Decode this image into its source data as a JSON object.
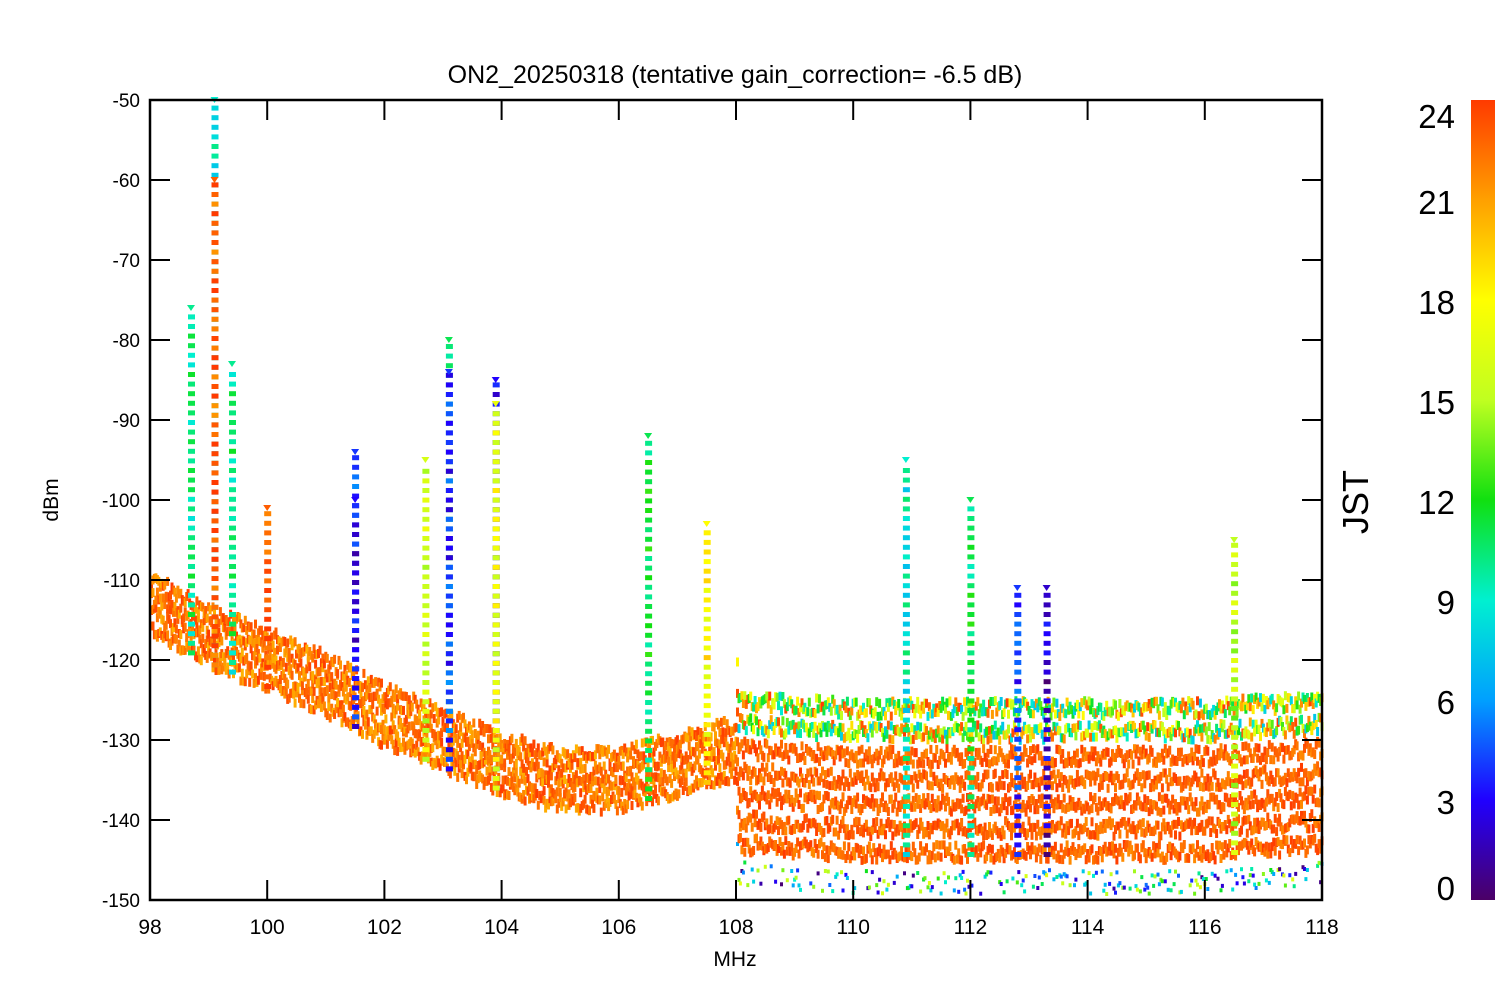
{
  "chart_data": {
    "type": "scatter",
    "title": "ON2_20250318 (tentative gain_correction= -6.5 dB)",
    "xlabel": "MHz",
    "ylabel": "dBm",
    "xlim": [
      98,
      118
    ],
    "ylim": [
      -150,
      -50
    ],
    "x_ticks": [
      98,
      100,
      102,
      104,
      106,
      108,
      110,
      112,
      114,
      116,
      118
    ],
    "y_ticks": [
      -50,
      -60,
      -70,
      -80,
      -90,
      -100,
      -110,
      -120,
      -130,
      -140,
      -150
    ],
    "grid": false,
    "colorbar": {
      "label": "JST",
      "range": [
        0,
        24
      ],
      "ticks": [
        24,
        21,
        18,
        15,
        12,
        9,
        6,
        3,
        0
      ],
      "colormap": "rainbow",
      "colors": [
        "#4b0066",
        "#2000ff",
        "#00a0ff",
        "#00f0d0",
        "#10e010",
        "#c0ff20",
        "#ffff00",
        "#ffa000",
        "#ff3a00"
      ]
    },
    "noise_floor": [
      {
        "x": 98.0,
        "y": -116
      },
      {
        "x": 99.0,
        "y": -120
      },
      {
        "x": 100.0,
        "y": -123
      },
      {
        "x": 101.0,
        "y": -126
      },
      {
        "x": 102.0,
        "y": -130
      },
      {
        "x": 103.0,
        "y": -133
      },
      {
        "x": 104.0,
        "y": -136
      },
      {
        "x": 105.0,
        "y": -138
      },
      {
        "x": 106.0,
        "y": -138
      },
      {
        "x": 107.0,
        "y": -136
      },
      {
        "x": 107.99,
        "y": -134
      },
      {
        "x": 108.01,
        "y": -143
      },
      {
        "x": 110.0,
        "y": -144
      },
      {
        "x": 112.0,
        "y": -144
      },
      {
        "x": 114.0,
        "y": -144
      },
      {
        "x": 116.0,
        "y": -144
      },
      {
        "x": 118.0,
        "y": -143
      }
    ],
    "peaks": [
      {
        "x": 98.7,
        "y": -76,
        "jst": 10
      },
      {
        "x": 99.1,
        "y": -50,
        "jst": 9
      },
      {
        "x": 99.1,
        "y": -60,
        "jst": 23
      },
      {
        "x": 99.4,
        "y": -83,
        "jst": 10
      },
      {
        "x": 100.0,
        "y": -101,
        "jst": 23
      },
      {
        "x": 101.5,
        "y": -94,
        "jst": 4
      },
      {
        "x": 101.5,
        "y": -100,
        "jst": 3
      },
      {
        "x": 102.7,
        "y": -95,
        "jst": 16
      },
      {
        "x": 103.1,
        "y": -80,
        "jst": 11
      },
      {
        "x": 103.1,
        "y": -84,
        "jst": 4
      },
      {
        "x": 103.9,
        "y": -85,
        "jst": 3
      },
      {
        "x": 103.9,
        "y": -88,
        "jst": 17
      },
      {
        "x": 106.5,
        "y": -92,
        "jst": 11
      },
      {
        "x": 107.5,
        "y": -103,
        "jst": 18
      },
      {
        "x": 110.9,
        "y": -95,
        "jst": 9
      },
      {
        "x": 112.0,
        "y": -100,
        "jst": 11
      },
      {
        "x": 112.8,
        "y": -111,
        "jst": 4
      },
      {
        "x": 113.3,
        "y": -111,
        "jst": 2
      },
      {
        "x": 116.5,
        "y": -105,
        "jst": 15
      }
    ]
  }
}
